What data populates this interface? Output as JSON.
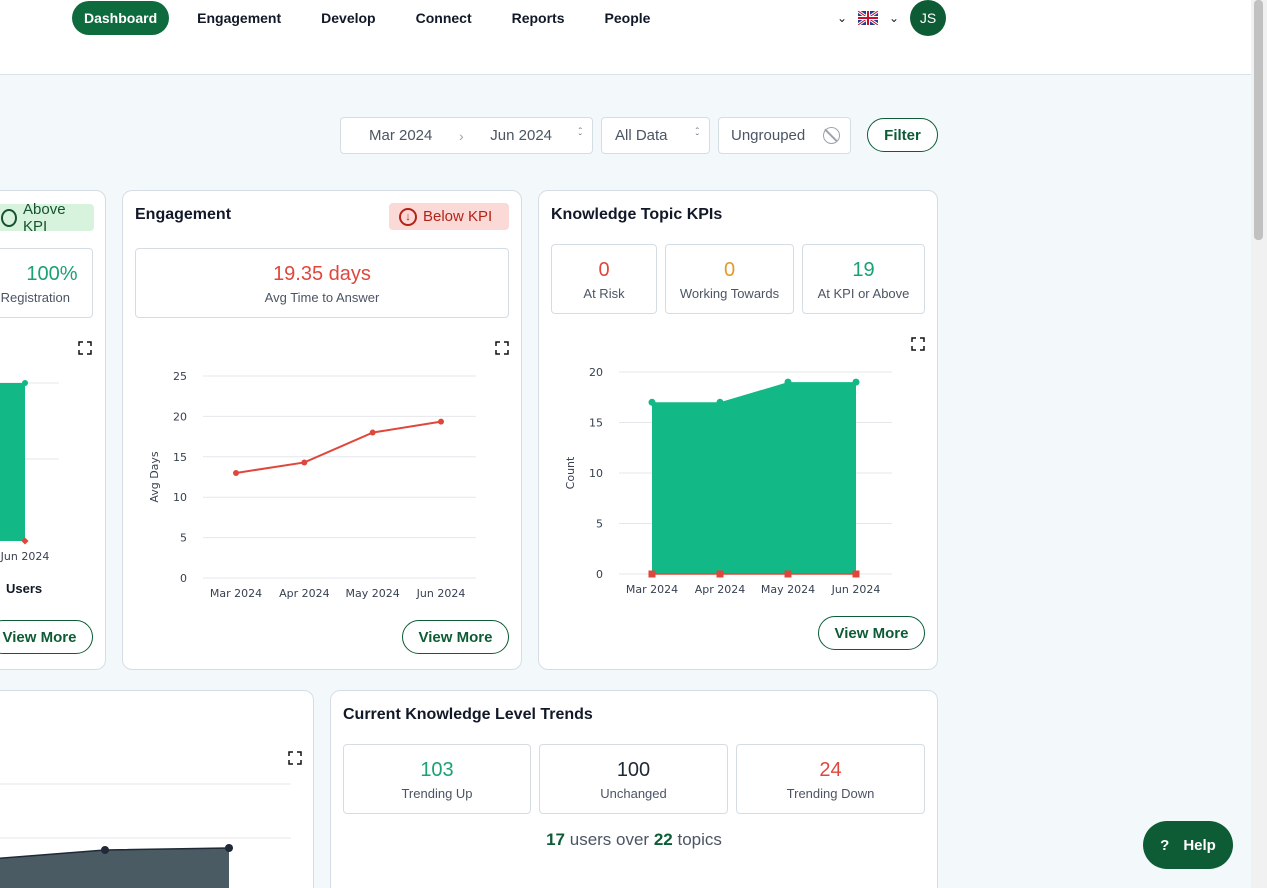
{
  "nav": {
    "items": [
      "Dashboard",
      "Engagement",
      "Develop",
      "Connect",
      "Reports",
      "People"
    ],
    "avatar_initials": "JS"
  },
  "filters": {
    "date_from": "Mar 2024",
    "date_to": "Jun 2024",
    "data_scope": "All Data",
    "grouping": "Ungrouped",
    "filter_label": "Filter"
  },
  "left_card": {
    "badge": "Above KPI",
    "stat_value": "100%",
    "stat_label": "Registration",
    "axis_label_visible": "Jun 2024",
    "legend": "Users",
    "view_more": "View More"
  },
  "engagement": {
    "title": "Engagement",
    "badge": "Below KPI",
    "stat_value": "19.35 days",
    "stat_label": "Avg Time to Answer",
    "view_more": "View More"
  },
  "knowledge_kpis": {
    "title": "Knowledge Topic KPIs",
    "stats": [
      {
        "value": "0",
        "label": "At Risk"
      },
      {
        "value": "0",
        "label": "Working Towards"
      },
      {
        "value": "19",
        "label": "At KPI or Above"
      }
    ],
    "view_more": "View More"
  },
  "trends": {
    "title": "Current Knowledge Level Trends",
    "stats": [
      {
        "value": "103",
        "label": "Trending Up"
      },
      {
        "value": "100",
        "label": "Unchanged"
      },
      {
        "value": "24",
        "label": "Trending Down"
      }
    ],
    "summary_users": "17",
    "summary_mid": "users over",
    "summary_topics": "22",
    "summary_end": "topics"
  },
  "help_label": "Help",
  "colors": {
    "brand": "#0d5c36",
    "green": "#1aa176",
    "red": "#e0473c",
    "orange": "#e39a2c",
    "area_green": "#12b886",
    "area_dark": "#4b5b63"
  },
  "chart_data": [
    {
      "type": "line",
      "title": "",
      "categories": [
        "Mar 2024",
        "Apr 2024",
        "May 2024",
        "Jun 2024"
      ],
      "series": [
        {
          "values": [
            13.0,
            14.3,
            18.0,
            19.35
          ]
        }
      ],
      "ylabel": "Avg Days",
      "ylim": [
        0,
        25
      ],
      "yticks": [
        0,
        5,
        10,
        15,
        20,
        25
      ],
      "grid": true
    },
    {
      "type": "area",
      "title": "",
      "categories": [
        "Mar 2024",
        "Apr 2024",
        "May 2024",
        "Jun 2024"
      ],
      "series": [
        {
          "values": [
            17,
            17,
            19,
            19
          ]
        },
        {
          "values": [
            0,
            0,
            0,
            0
          ]
        }
      ],
      "ylabel": "Count",
      "ylim": [
        0,
        20
      ],
      "yticks": [
        0,
        5,
        10,
        15,
        20
      ],
      "grid": true
    }
  ]
}
